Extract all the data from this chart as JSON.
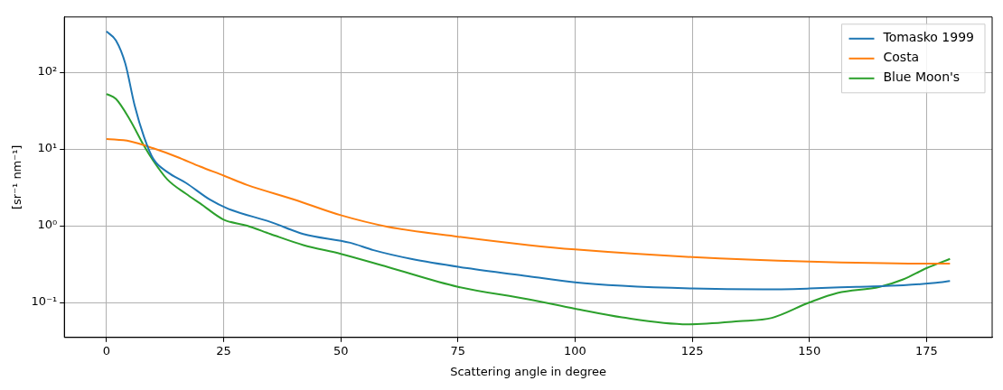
{
  "chart_data": {
    "type": "line",
    "xlabel": "Scattering angle in degree",
    "ylabel": "[sr⁻¹ nm⁻¹]",
    "log": "y",
    "grid": true,
    "legend": "top right",
    "marker": "none",
    "line_style": "solid",
    "xlim": [
      -9,
      189
    ],
    "xticks": [
      0,
      25,
      50,
      75,
      100,
      125,
      150,
      175
    ],
    "ylim": [
      0.035,
      525
    ],
    "yticks": [
      {
        "value": 0.1,
        "label": "10⁻¹"
      },
      {
        "value": 1,
        "label": "10⁰"
      },
      {
        "value": 10,
        "label": "10¹"
      },
      {
        "value": 100,
        "label": "10²"
      }
    ],
    "series": [
      {
        "name": "Tomasko 1999",
        "color": "#1f77b4",
        "x": [
          0,
          2,
          4,
          6,
          8,
          10,
          13,
          17,
          22,
          26,
          35,
          42,
          52,
          57,
          65,
          77,
          90,
          100,
          110,
          125,
          140,
          150,
          160,
          170,
          177,
          180
        ],
        "values": [
          340,
          260,
          130,
          37,
          14.4,
          7.4,
          5.0,
          3.6,
          2.2,
          1.66,
          1.12,
          0.78,
          0.6,
          0.48,
          0.37,
          0.28,
          0.22,
          0.183,
          0.165,
          0.152,
          0.148,
          0.152,
          0.16,
          0.168,
          0.18,
          0.19
        ]
      },
      {
        "name": "Costa",
        "color": "#ff7f0e",
        "x": [
          0,
          5,
          10,
          15,
          20,
          25,
          30,
          40,
          50,
          60,
          75,
          90,
          100,
          125,
          150,
          175,
          180
        ],
        "values": [
          13.5,
          12.6,
          10.2,
          7.9,
          5.9,
          4.5,
          3.4,
          2.2,
          1.37,
          0.97,
          0.72,
          0.56,
          0.49,
          0.39,
          0.34,
          0.32,
          0.32
        ]
      },
      {
        "name": "Blue Moon's",
        "color": "#2ca02c",
        "x": [
          0,
          2,
          5,
          8,
          10,
          13,
          17,
          20,
          25,
          30,
          35,
          42,
          50,
          60,
          75,
          90,
          100,
          110,
          124,
          135,
          142,
          150,
          156,
          165,
          170,
          175,
          180
        ],
        "values": [
          52,
          45,
          24,
          11,
          7,
          4.0,
          2.6,
          1.95,
          1.2,
          1.0,
          0.78,
          0.56,
          0.43,
          0.29,
          0.16,
          0.11,
          0.083,
          0.064,
          0.052,
          0.057,
          0.063,
          0.1,
          0.133,
          0.16,
          0.2,
          0.28,
          0.37
        ]
      }
    ]
  }
}
